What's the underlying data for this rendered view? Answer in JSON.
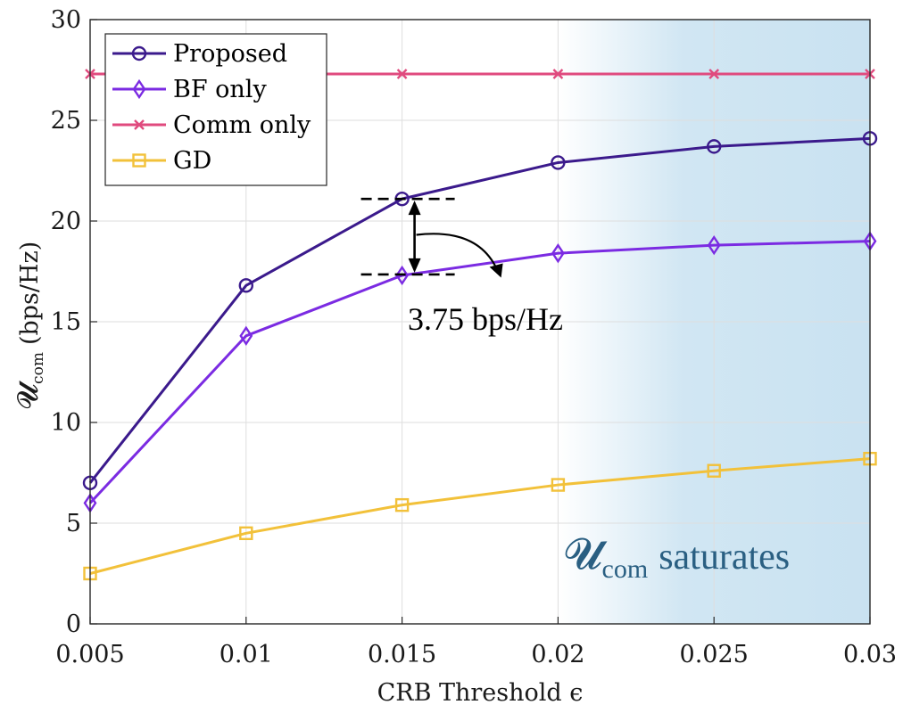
{
  "chart_data": {
    "type": "line",
    "x": [
      0.005,
      0.01,
      0.015,
      0.02,
      0.025,
      0.03
    ],
    "xticks": [
      "0.005",
      "0.01",
      "0.015",
      "0.02",
      "0.025",
      "0.03"
    ],
    "yticks": [
      "0",
      "5",
      "10",
      "15",
      "20",
      "25",
      "30"
    ],
    "xlim": [
      0.005,
      0.03
    ],
    "ylim": [
      0,
      30
    ],
    "grid": true,
    "legend_position": "top-left",
    "xlabel": "CRB Threshold ϵ",
    "ylabel_symbol": "𝓤",
    "ylabel_sub": "com",
    "ylabel_unit": "(bps/Hz)",
    "series": [
      {
        "name": "Proposed",
        "marker": "circle",
        "color": "#3b1a8c",
        "values": [
          7.0,
          16.8,
          21.1,
          22.9,
          23.7,
          24.1
        ]
      },
      {
        "name": "BF only",
        "marker": "diamond",
        "color": "#7b2be2",
        "values": [
          6.0,
          14.3,
          17.3,
          18.4,
          18.8,
          19.0
        ]
      },
      {
        "name": "Comm only",
        "marker": "x",
        "color": "#e04a7e",
        "values": [
          27.3,
          27.3,
          27.3,
          27.3,
          27.3,
          27.3
        ]
      },
      {
        "name": "GD",
        "marker": "square",
        "color": "#f2c13a",
        "values": [
          2.5,
          4.5,
          5.9,
          6.9,
          7.6,
          8.2
        ]
      }
    ],
    "annotations": {
      "gap_label": "3.75 bps/Hz",
      "gap_x": 0.0154,
      "gap_top": 21.1,
      "gap_bottom": 17.35,
      "shade_from": 0.02,
      "shade_to": 0.03,
      "saturation_symbol": "𝓤",
      "saturation_sub": "com",
      "saturation_text": "saturates"
    }
  }
}
